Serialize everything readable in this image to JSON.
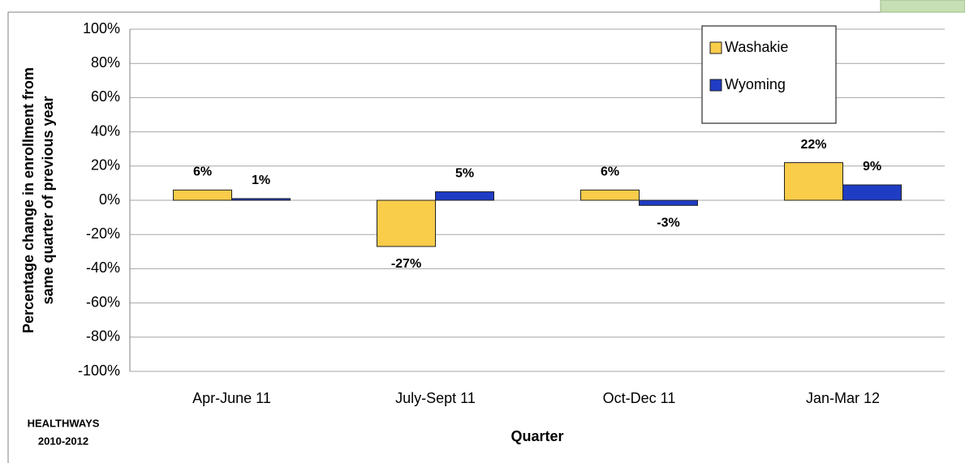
{
  "chart_data": {
    "type": "bar",
    "y_label": [
      "Percentage change in enrollment from",
      "same quarter of previous year"
    ],
    "x_label": "Quarter",
    "source": [
      "HEALTHWAYS",
      "2010-2012"
    ],
    "categories": [
      "Apr-June 11",
      "July-Sept 11",
      "Oct-Dec 11",
      "Jan-Mar 12"
    ],
    "series": [
      {
        "name": "Washakie",
        "color": "#f9cc4a",
        "values": [
          6,
          -27,
          6,
          22
        ],
        "value_labels": [
          "6%",
          "-27%",
          "6%",
          "22%"
        ]
      },
      {
        "name": "Wyoming",
        "color": "#1f3cc4",
        "values": [
          1,
          5,
          -3,
          9
        ],
        "value_labels": [
          "1%",
          "5%",
          "-3%",
          "9%"
        ]
      }
    ],
    "ylim": [
      -100,
      100
    ],
    "yticks": [
      {
        "value": -100,
        "label": "-100%"
      },
      {
        "value": -80,
        "label": "-80%"
      },
      {
        "value": -60,
        "label": "-60%"
      },
      {
        "value": -40,
        "label": "-40%"
      },
      {
        "value": -20,
        "label": "-20%"
      },
      {
        "value": 0,
        "label": "0%"
      },
      {
        "value": 20,
        "label": "20%"
      },
      {
        "value": 40,
        "label": "40%"
      },
      {
        "value": 60,
        "label": "60%"
      },
      {
        "value": 80,
        "label": "80%"
      },
      {
        "value": 100,
        "label": "100%"
      }
    ],
    "grid": true,
    "legend": "top-right"
  }
}
